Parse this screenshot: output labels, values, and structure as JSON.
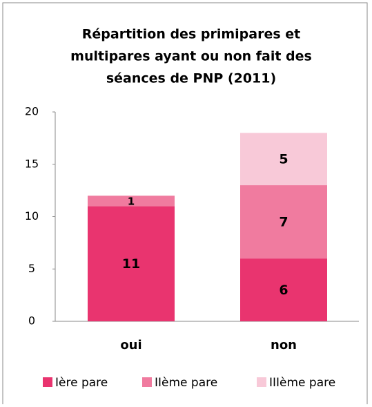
{
  "chart_data": {
    "type": "stacked_bar",
    "title": [
      "Répartition des primipares et",
      "multipares ayant ou non fait des",
      "séances de PNP (2011)"
    ],
    "categories": [
      "oui",
      "non"
    ],
    "series": [
      {
        "name": "Ière pare",
        "color": "#e9346f",
        "values": [
          11,
          6
        ]
      },
      {
        "name": "IIème pare",
        "color": "#f07b9f",
        "values": [
          1,
          7
        ]
      },
      {
        "name": "IIIème pare",
        "color": "#f8c9d8",
        "values": [
          null,
          5
        ]
      }
    ],
    "ylim": [
      0,
      20
    ],
    "yticks": [
      0,
      5,
      10,
      15,
      20
    ],
    "grid": false,
    "legend": "bottom"
  }
}
